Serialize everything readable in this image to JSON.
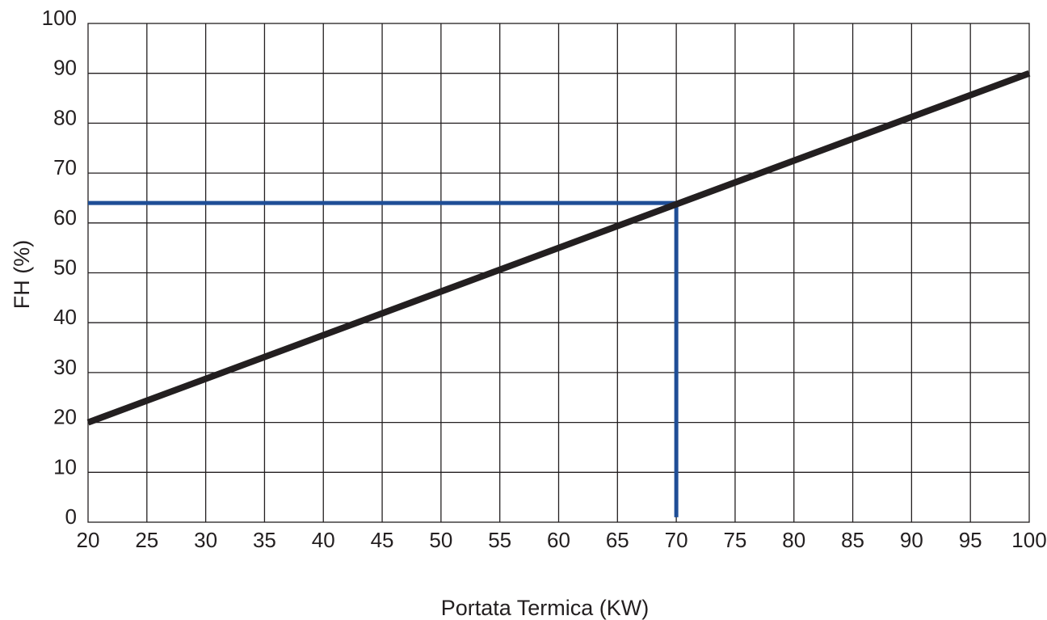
{
  "chart_data": {
    "type": "line",
    "title": "",
    "xlabel": "Portata Termica (KW)",
    "ylabel": "FH  (%)",
    "xlim": [
      20,
      100
    ],
    "ylim": [
      0,
      100
    ],
    "x_ticks": [
      20,
      25,
      30,
      35,
      40,
      45,
      50,
      55,
      60,
      65,
      70,
      75,
      80,
      85,
      90,
      95,
      100
    ],
    "y_ticks": [
      0,
      10,
      20,
      30,
      40,
      50,
      60,
      70,
      80,
      90,
      100
    ],
    "grid": true,
    "legend": "none",
    "series": [
      {
        "x": [
          20,
          100
        ],
        "y": [
          20,
          90
        ],
        "color": "#231f20"
      }
    ],
    "reference_lines": [
      {
        "points": [
          [
            20,
            64
          ],
          [
            70,
            64
          ],
          [
            70,
            1
          ]
        ],
        "color": "#1f4e96"
      }
    ]
  }
}
